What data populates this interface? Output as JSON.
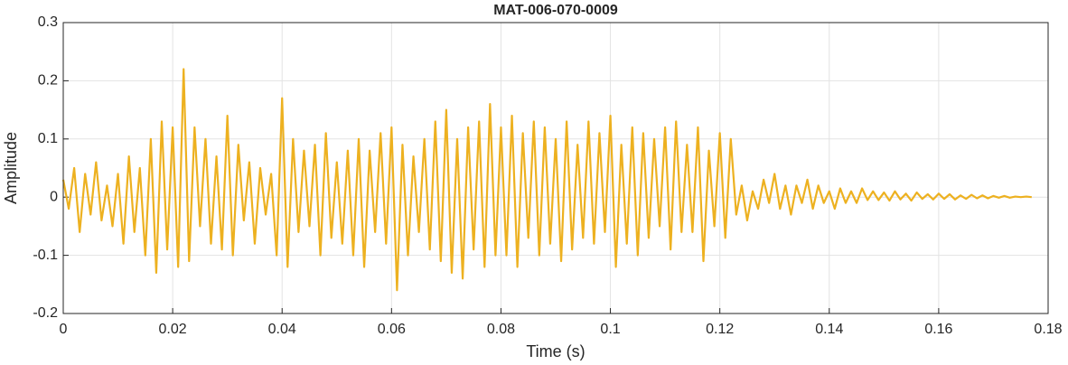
{
  "chart_data": {
    "type": "line",
    "title": "MAT-006-070-0009",
    "x_label": "Time (s)",
    "y_label": "Amplitude",
    "x": [
      0,
      0.001,
      0.002,
      0.003,
      0.004,
      0.005,
      0.006,
      0.007,
      0.008,
      0.009,
      0.01,
      0.011,
      0.012,
      0.013,
      0.014,
      0.015,
      0.016,
      0.017,
      0.018,
      0.019,
      0.02,
      0.021,
      0.022,
      0.023,
      0.024,
      0.025,
      0.026,
      0.027,
      0.028,
      0.029,
      0.03,
      0.031,
      0.032,
      0.033,
      0.034,
      0.035,
      0.036,
      0.037,
      0.038,
      0.039,
      0.04,
      0.041,
      0.042,
      0.043,
      0.044,
      0.045,
      0.046,
      0.047,
      0.048,
      0.049,
      0.05,
      0.051,
      0.052,
      0.053,
      0.054,
      0.055,
      0.056,
      0.057,
      0.058,
      0.059,
      0.06,
      0.061,
      0.062,
      0.063,
      0.064,
      0.065,
      0.066,
      0.067,
      0.068,
      0.069,
      0.07,
      0.071,
      0.072,
      0.073,
      0.074,
      0.075,
      0.076,
      0.077,
      0.078,
      0.079,
      0.08,
      0.081,
      0.082,
      0.083,
      0.084,
      0.085,
      0.086,
      0.087,
      0.088,
      0.089,
      0.09,
      0.091,
      0.092,
      0.093,
      0.094,
      0.095,
      0.096,
      0.097,
      0.098,
      0.099,
      0.1,
      0.101,
      0.102,
      0.103,
      0.104,
      0.105,
      0.106,
      0.107,
      0.108,
      0.109,
      0.11,
      0.111,
      0.112,
      0.113,
      0.114,
      0.115,
      0.116,
      0.117,
      0.118,
      0.119,
      0.12,
      0.121,
      0.122,
      0.123,
      0.124,
      0.125,
      0.126,
      0.127,
      0.128,
      0.129,
      0.13,
      0.131,
      0.132,
      0.133,
      0.134,
      0.135,
      0.136,
      0.137,
      0.138,
      0.139,
      0.14,
      0.141,
      0.142,
      0.143,
      0.144,
      0.145,
      0.146,
      0.147,
      0.148,
      0.149,
      0.15,
      0.151,
      0.152,
      0.153,
      0.154,
      0.155,
      0.156,
      0.157,
      0.158,
      0.159,
      0.16,
      0.161,
      0.162,
      0.163,
      0.164,
      0.165,
      0.166,
      0.167,
      0.168,
      0.169,
      0.17,
      0.171,
      0.172,
      0.173,
      0.174,
      0.175,
      0.176,
      0.177
    ],
    "series": [
      {
        "name": "Amplitude",
        "color": "#EDB120",
        "values": [
          0.03,
          -0.02,
          0.05,
          -0.06,
          0.04,
          -0.03,
          0.06,
          -0.04,
          0.02,
          -0.05,
          0.04,
          -0.08,
          0.07,
          -0.06,
          0.05,
          -0.1,
          0.1,
          -0.13,
          0.13,
          -0.09,
          0.12,
          -0.12,
          0.22,
          -0.11,
          0.12,
          -0.05,
          0.1,
          -0.08,
          0.07,
          -0.09,
          0.14,
          -0.1,
          0.09,
          -0.04,
          0.06,
          -0.08,
          0.05,
          -0.03,
          0.04,
          -0.1,
          0.17,
          -0.12,
          0.1,
          -0.06,
          0.08,
          -0.05,
          0.09,
          -0.1,
          0.11,
          -0.07,
          0.06,
          -0.08,
          0.08,
          -0.1,
          0.1,
          -0.12,
          0.08,
          -0.06,
          0.11,
          -0.08,
          0.12,
          -0.16,
          0.09,
          -0.1,
          0.07,
          -0.06,
          0.1,
          -0.09,
          0.13,
          -0.11,
          0.15,
          -0.13,
          0.1,
          -0.14,
          0.12,
          -0.09,
          0.13,
          -0.12,
          0.16,
          -0.1,
          0.12,
          -0.1,
          0.14,
          -0.12,
          0.11,
          -0.07,
          0.13,
          -0.1,
          0.12,
          -0.08,
          0.1,
          -0.11,
          0.13,
          -0.09,
          0.09,
          -0.07,
          0.13,
          -0.08,
          0.11,
          -0.06,
          0.14,
          -0.12,
          0.09,
          -0.08,
          0.12,
          -0.1,
          0.11,
          -0.07,
          0.1,
          -0.05,
          0.12,
          -0.09,
          0.13,
          -0.06,
          0.09,
          -0.06,
          0.12,
          -0.11,
          0.08,
          -0.05,
          0.11,
          -0.07,
          0.1,
          -0.03,
          0.02,
          -0.04,
          0.01,
          -0.02,
          0.03,
          -0.01,
          0.04,
          -0.02,
          0.02,
          -0.03,
          0.02,
          -0.01,
          0.03,
          -0.02,
          0.02,
          -0.01,
          0.01,
          -0.02,
          0.015,
          -0.01,
          0.01,
          -0.01,
          0.015,
          -0.005,
          0.01,
          -0.005,
          0.008,
          -0.006,
          0.01,
          -0.004,
          0.006,
          -0.006,
          0.008,
          -0.003,
          0.005,
          -0.004,
          0.006,
          -0.003,
          0.005,
          -0.004,
          0.003,
          -0.003,
          0.004,
          -0.002,
          0.003,
          -0.002,
          0.002,
          -0.001,
          0.002,
          -0.001,
          0.001,
          0,
          0.001,
          0
        ]
      }
    ],
    "xlim": [
      0,
      0.18
    ],
    "xticks": [
      0,
      0.02,
      0.04,
      0.06,
      0.08,
      0.1,
      0.12,
      0.14,
      0.16,
      0.18
    ],
    "ylim": [
      -0.2,
      0.3
    ],
    "yticks": [
      -0.2,
      -0.1,
      0,
      0.1,
      0.2,
      0.3
    ],
    "grid": true
  }
}
